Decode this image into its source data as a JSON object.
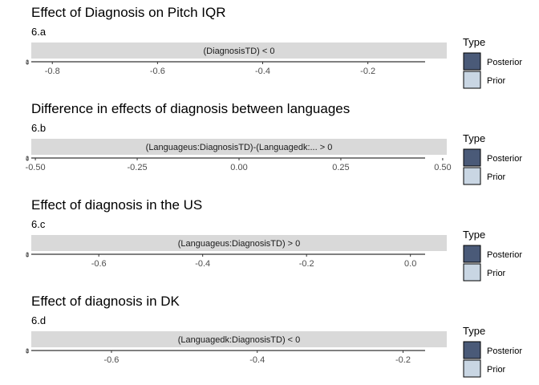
{
  "chart_data": [
    {
      "type": "area",
      "title": "Effect of Diagnosis on Pitch IQR",
      "subtitle": "6.a",
      "strip": "(DiagnosisTD) < 0",
      "xlim": [
        -0.84,
        -0.05
      ],
      "x_ticks": [
        -0.8,
        -0.6,
        -0.4,
        -0.2
      ],
      "x_tick_labels": [
        "-0.8",
        "-0.6",
        "-0.4",
        "-0.2"
      ],
      "y_ticks": [
        0,
        1,
        2
      ],
      "y_tick_labels": [
        "0",
        "1",
        "2"
      ],
      "grid": false,
      "legend": {
        "title": "Type",
        "position": "right",
        "items": [
          {
            "label": "Posterior",
            "color": "#4a5a78"
          },
          {
            "label": "Prior",
            "color": "#c9d6e3"
          }
        ]
      },
      "series": [
        {
          "name": "Posterior",
          "color": "#4a5a78",
          "values": []
        },
        {
          "name": "Prior",
          "color": "#c9d6e3",
          "values": []
        }
      ]
    },
    {
      "type": "area",
      "title": "Difference in effects of diagnosis between languages",
      "subtitle": "6.b",
      "strip": "(Languageus:DiagnosisTD)-(Languagedk:... > 0",
      "xlim": [
        -0.51,
        0.51
      ],
      "x_ticks": [
        -0.5,
        -0.25,
        0.0,
        0.25,
        0.5
      ],
      "x_tick_labels": [
        "-0.50",
        "-0.25",
        "0.00",
        "0.25",
        "0.50"
      ],
      "y_ticks": [
        0,
        1,
        2
      ],
      "y_tick_labels": [
        "0",
        "1",
        "2"
      ],
      "grid": false,
      "legend": {
        "title": "Type",
        "position": "right",
        "items": [
          {
            "label": "Posterior",
            "color": "#4a5a78"
          },
          {
            "label": "Prior",
            "color": "#c9d6e3"
          }
        ]
      },
      "series": [
        {
          "name": "Posterior",
          "color": "#4a5a78",
          "values": []
        },
        {
          "name": "Prior",
          "color": "#c9d6e3",
          "values": []
        }
      ]
    },
    {
      "type": "area",
      "title": "Effect of diagnosis in the US",
      "subtitle": "6.c",
      "strip": "(Languageus:DiagnosisTD) > 0",
      "xlim": [
        -0.73,
        0.07
      ],
      "x_ticks": [
        -0.6,
        -0.4,
        -0.2,
        0.0
      ],
      "x_tick_labels": [
        "-0.6",
        "-0.4",
        "-0.2",
        "0.0"
      ],
      "y_ticks": [
        0,
        1,
        2
      ],
      "y_tick_labels": [
        "0",
        "1",
        "2"
      ],
      "grid": false,
      "legend": {
        "title": "Type",
        "position": "right",
        "items": [
          {
            "label": "Posterior",
            "color": "#4a5a78"
          },
          {
            "label": "Prior",
            "color": "#c9d6e3"
          }
        ]
      },
      "series": [
        {
          "name": "Posterior",
          "color": "#4a5a78",
          "values": []
        },
        {
          "name": "Prior",
          "color": "#c9d6e3",
          "values": []
        }
      ]
    },
    {
      "type": "area",
      "title": "Effect of diagnosis in DK",
      "subtitle": "6.d",
      "strip": "(Languagedk:DiagnosisTD) < 0",
      "xlim": [
        -0.71,
        -0.14
      ],
      "x_ticks": [
        -0.6,
        -0.4,
        -0.2
      ],
      "x_tick_labels": [
        "-0.6",
        "-0.4",
        "-0.2"
      ],
      "y_ticks": [
        0,
        1,
        2
      ],
      "y_tick_labels": [
        "0",
        "1",
        "2"
      ],
      "grid": false,
      "legend": {
        "title": "Type",
        "position": "right",
        "items": [
          {
            "label": "Posterior",
            "color": "#4a5a78"
          },
          {
            "label": "Prior",
            "color": "#c9d6e3"
          }
        ]
      },
      "series": [
        {
          "name": "Posterior",
          "color": "#4a5a78",
          "values": []
        },
        {
          "name": "Prior",
          "color": "#c9d6e3",
          "values": []
        }
      ]
    }
  ]
}
